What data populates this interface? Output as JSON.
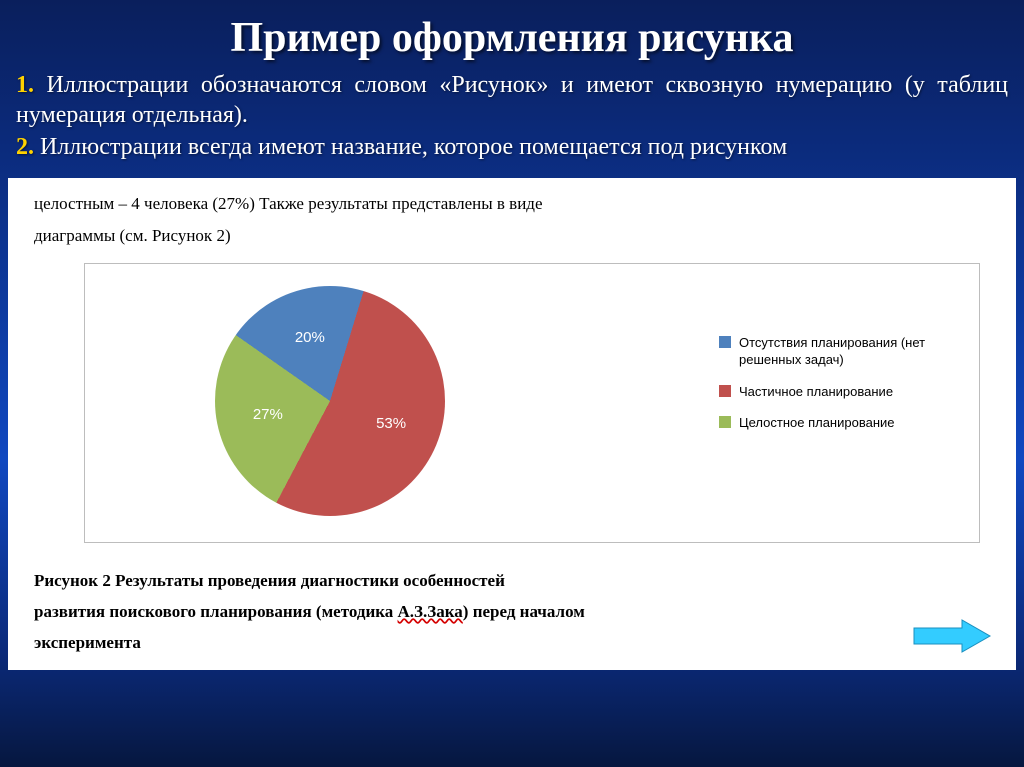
{
  "slide": {
    "title": "Пример оформления рисунка",
    "title_fontsize": 42,
    "title_color": "#ffffff",
    "background_gradient": [
      "#0a1f5c",
      "#0d3a9f",
      "#1048c0",
      "#06173f"
    ],
    "notes": {
      "num1": "1.",
      "line1": "Иллюстрации обозначаются словом «Рисунок» и имеют сквозную нумерацию (у таблиц нумерация отдельная).",
      "num2": "2.",
      "line2": "Иллюстрации всегда имеют название, которое помещается под рисунком",
      "fontsize": 24,
      "number_color": "#ffd200",
      "text_color": "#ffffff"
    }
  },
  "document": {
    "background_color": "#ffffff",
    "top_text_a": "целостным – 4 человека (27%) Также результаты представлены в виде",
    "top_text_b": "диаграммы (см. Рисунок 2)",
    "top_fontsize": 17,
    "caption_a": "Рисунок 2 Результаты проведения диагностики особенностей",
    "caption_b_prefix": "развития поискового планирования (методика ",
    "caption_b_wavy": "А.З.Зака",
    "caption_b_suffix": ") перед началом",
    "caption_c": "эксперимента",
    "caption_fontsize": 17,
    "wavy_color": "#d40000"
  },
  "chart": {
    "type": "pie",
    "frame_border_color": "#bdbdbd",
    "slices": [
      {
        "label": "Отсутствия планирования (нет решенных задач)",
        "value": 20,
        "color": "#4e81bd",
        "text": "20%"
      },
      {
        "label": "Частичное планирование",
        "value": 53,
        "color": "#c0504d",
        "text": "53%"
      },
      {
        "label": "Целостное планирование",
        "value": 27,
        "color": "#9bbb59",
        "text": "27%"
      }
    ],
    "slice_label_color": "#ffffff",
    "slice_label_fontsize": 15,
    "legend_fontsize": 13,
    "start_angle_deg": -55
  },
  "arrow": {
    "fill": "#33ccff",
    "stroke": "#1a8fbf"
  }
}
